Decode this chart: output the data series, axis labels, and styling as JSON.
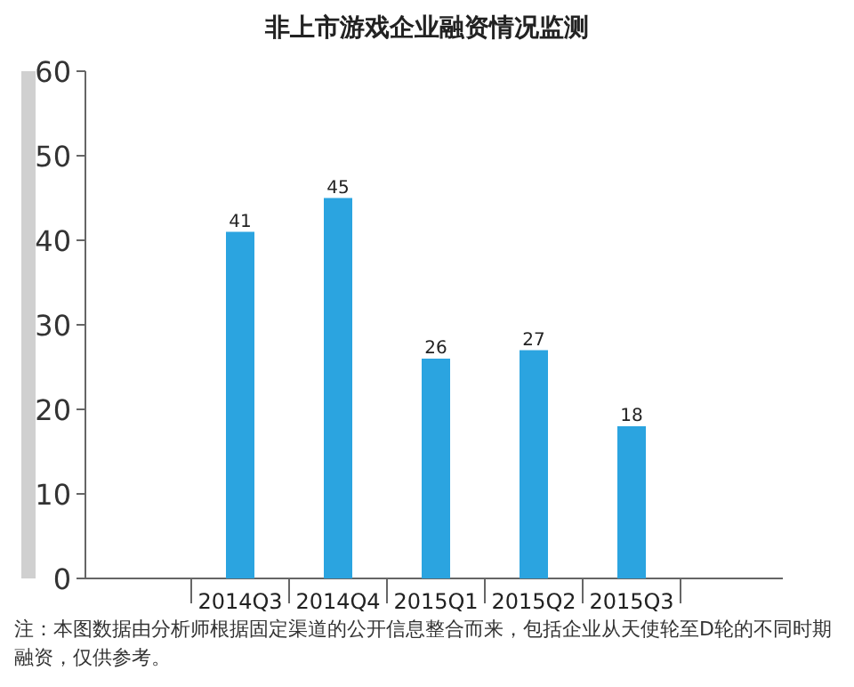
{
  "chart_data": {
    "type": "bar",
    "title": "非上市游戏企业融资情况监测",
    "categories": [
      "2014Q3",
      "2014Q4",
      "2015Q1",
      "2015Q2",
      "2015Q3"
    ],
    "values": [
      41,
      45,
      26,
      27,
      18
    ],
    "color": "#2ba4e0",
    "ylim": [
      0,
      60
    ],
    "yticks": [
      0,
      10,
      20,
      30,
      40,
      50,
      60
    ],
    "data_labels": true,
    "annotations": [
      "注：本图数据由分析师根据固定渠道的公开信息整合而来，包括企业从天使轮至D轮的不同时期融资，仅供参考。"
    ]
  }
}
